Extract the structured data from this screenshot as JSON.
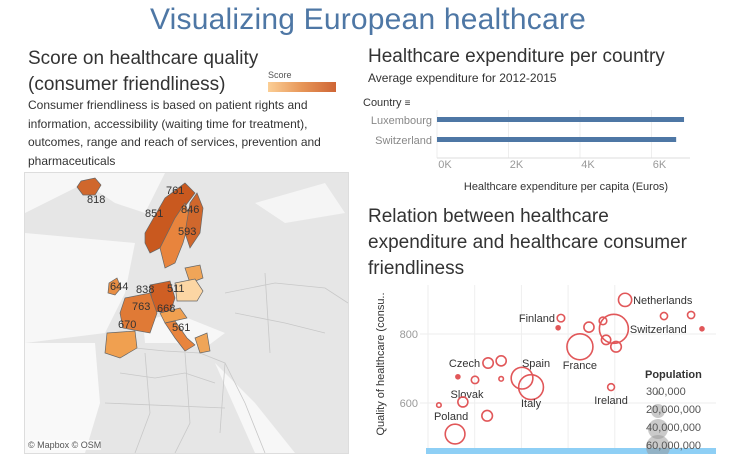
{
  "title": "Visualizing European healthcare",
  "colors": {
    "title": "#4e77a5",
    "bar": "#4e77a5",
    "scatter": "#e15759",
    "map_low": "#fbc98a",
    "map_high": "#c9541f",
    "filter_strip": "#8ecff5"
  },
  "map_panel": {
    "title_line1": "Score on healthcare quality",
    "title_line2": "(consumer friendliness)",
    "description": [
      "Consumer friendliness is based on patient rights and",
      "information, accessibility (waiting time for treatment),",
      "outcomes, range and reach of services, prevention and",
      "pharmaceuticals"
    ],
    "legend_title": "Score",
    "attribution": "© Mapbox  © OSM"
  },
  "bar_panel": {
    "title": "Healthcare expenditure per country",
    "subtitle": "Average expenditure for 2012-2015",
    "dimension_label": "Country",
    "sort_icon": "sort-descending-icon"
  },
  "scatter_panel": {
    "title_lines": [
      "Relation between healthcare",
      "expenditure and healthcare consumer",
      "friendliness"
    ],
    "legend_title": "Population",
    "legend_items": [
      "300,000",
      "20,000,000",
      "40,000,000",
      "60,000,000"
    ]
  },
  "chart_data": [
    {
      "type": "map",
      "title": "Score on healthcare quality (consumer friendliness)",
      "legend": "Score",
      "regions": [
        {
          "label": "818",
          "value": 818
        },
        {
          "label": "761",
          "value": 761
        },
        {
          "label": "851",
          "value": 851
        },
        {
          "label": "846",
          "value": 846
        },
        {
          "label": "593",
          "value": 593
        },
        {
          "label": "644",
          "value": 644
        },
        {
          "label": "838",
          "value": 838
        },
        {
          "label": "511",
          "value": 511
        },
        {
          "label": "763",
          "value": 763
        },
        {
          "label": "668",
          "value": 668
        },
        {
          "label": "670",
          "value": 670
        },
        {
          "label": "561",
          "value": 561
        }
      ]
    },
    {
      "type": "bar",
      "orientation": "horizontal",
      "title": "Healthcare expenditure per country",
      "subtitle": "Average expenditure for 2012-2015",
      "categories": [
        "Luxembourg",
        "Switzerland"
      ],
      "values": [
        6910,
        6690
      ],
      "xlabel": "Healthcare expenditure per capita (Euros)",
      "ylabel": "Country",
      "xlim": [
        0,
        7200
      ],
      "xticks": [
        0,
        2000,
        4000,
        6000
      ],
      "xtick_labels": [
        "0K",
        "2K",
        "4K",
        "6K"
      ]
    },
    {
      "type": "scatter",
      "title": "Relation between healthcare expenditure and healthcare consumer friendliness",
      "ylabel": "Quality of healthcare (consu..",
      "ylim": [
        480,
        940
      ],
      "yticks": [
        600,
        800
      ],
      "xlim": [
        0,
        9000
      ],
      "size_legend": "Population",
      "points": [
        {
          "label": "Netherlands",
          "x": 6330,
          "y": 899,
          "population": 17000000
        },
        {
          "label": "",
          "x": 7580,
          "y": 852,
          "population": 5000000
        },
        {
          "label": "",
          "x": 8450,
          "y": 855,
          "population": 5000000
        },
        {
          "label": "",
          "x": 8800,
          "y": 815,
          "population": 600000
        },
        {
          "label": "Switzerland",
          "x": 5970,
          "y": 815,
          "population": 82000000
        },
        {
          "label": "Finland",
          "x": 4270,
          "y": 846,
          "population": 5500000
        },
        {
          "label": "",
          "x": 4180,
          "y": 818,
          "population": 400000
        },
        {
          "label": "",
          "x": 5170,
          "y": 820,
          "population": 10000000
        },
        {
          "label": "",
          "x": 5620,
          "y": 838,
          "population": 5700000
        },
        {
          "label": "",
          "x": 5720,
          "y": 783,
          "population": 8500000
        },
        {
          "label": "",
          "x": 6040,
          "y": 763,
          "population": 11000000
        },
        {
          "label": "France",
          "x": 4880,
          "y": 763,
          "population": 66000000
        },
        {
          "label": "Ireland",
          "x": 5880,
          "y": 646,
          "population": 4600000
        },
        {
          "label": "Czech",
          "x": 1930,
          "y": 716,
          "population": 10500000
        },
        {
          "label": "",
          "x": 2350,
          "y": 722,
          "population": 10000000
        },
        {
          "label": "",
          "x": 960,
          "y": 676,
          "population": 1300000
        },
        {
          "label": "Slovak",
          "x": 1510,
          "y": 667,
          "population": 5400000
        },
        {
          "label": "",
          "x": 2350,
          "y": 670,
          "population": 2000000
        },
        {
          "label": "Spain",
          "x": 3020,
          "y": 672,
          "population": 46000000
        },
        {
          "label": "Italy",
          "x": 3310,
          "y": 646,
          "population": 60000000
        },
        {
          "label": "",
          "x": 350,
          "y": 594,
          "population": 2000000
        },
        {
          "label": "",
          "x": 1120,
          "y": 603,
          "population": 9800000
        },
        {
          "label": "",
          "x": 1900,
          "y": 563,
          "population": 11000000
        },
        {
          "label": "Poland",
          "x": 870,
          "y": 510,
          "population": 38000000
        }
      ]
    }
  ]
}
